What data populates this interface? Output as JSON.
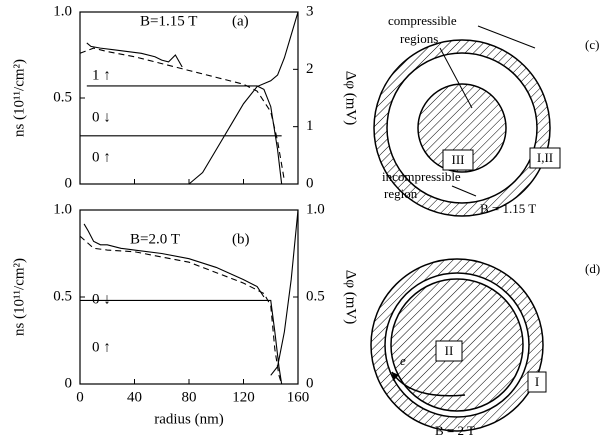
{
  "chart_data": [
    {
      "type": "line",
      "ylabel": "ns (10¹¹/cm²)",
      "y2label": "Δφ (mV)",
      "annotations": [
        "B=1.15 T",
        "(a)",
        "1 ↑",
        "0 ↓",
        "0 ↑"
      ],
      "xlim": [
        0,
        160
      ],
      "xticks": [
        0,
        40,
        80,
        120,
        160
      ],
      "ylim": [
        0,
        1
      ],
      "yticks": [
        0,
        0.5,
        {
          "value": 1,
          "label": "1.0"
        }
      ],
      "y2lim": [
        0,
        3
      ],
      "y2ticks": [
        0,
        1,
        2,
        3
      ],
      "series": [
        {
          "color": "#000000",
          "dash": false,
          "x": [
            5,
            8,
            15,
            25,
            35,
            45,
            55,
            60,
            65,
            70,
            75
          ],
          "values": [
            0.82,
            0.8,
            0.79,
            0.78,
            0.77,
            0.76,
            0.74,
            0.72,
            0.71,
            0.75,
            0.68
          ]
        },
        {
          "color": "#000000",
          "dash": true,
          "x": [
            0,
            10,
            20,
            40,
            60,
            80,
            100,
            120,
            130,
            140,
            145,
            150
          ],
          "values": [
            0.76,
            0.79,
            0.77,
            0.74,
            0.7,
            0.66,
            0.62,
            0.58,
            0.54,
            0.42,
            0.25,
            0.02
          ]
        },
        {
          "color": "#000000",
          "dash": false,
          "x": [
            5,
            130,
            135,
            140,
            145,
            148
          ],
          "values": [
            0.57,
            0.57,
            0.55,
            0.45,
            0.2,
            0
          ]
        },
        {
          "color": "#000000",
          "dash": false,
          "x": [
            0,
            148
          ],
          "values": [
            0.28,
            0.28
          ]
        },
        {
          "color": "#000000",
          "dash": false,
          "axis": "y2",
          "x": [
            80,
            90,
            100,
            110,
            120,
            130,
            140,
            145,
            150,
            155,
            160
          ],
          "values": [
            0,
            0.2,
            0.6,
            1,
            1.4,
            1.7,
            1.8,
            1.9,
            2.2,
            2.6,
            3
          ]
        }
      ]
    },
    {
      "type": "line",
      "ylabel": "ns (10¹¹/cm²)",
      "y2label": "Δφ (mV)",
      "xlabel": "radius (nm)",
      "annotations": [
        "B=2.0 T",
        "(b)",
        "0 ↓",
        "0 ↑"
      ],
      "xlim": [
        0,
        160
      ],
      "xticks": [
        0,
        40,
        80,
        120,
        160
      ],
      "ylim": [
        0,
        1
      ],
      "yticks": [
        0,
        0.5,
        {
          "value": 1,
          "label": "1.0"
        }
      ],
      "y2lim": [
        0,
        1
      ],
      "y2ticks": [
        0,
        0.5,
        {
          "value": 1,
          "label": "1.0"
        }
      ],
      "series": [
        {
          "color": "#000000",
          "dash": false,
          "x": [
            3,
            6,
            10,
            15,
            20,
            30,
            40,
            60,
            80,
            100,
            120,
            130,
            135
          ],
          "values": [
            0.92,
            0.88,
            0.82,
            0.8,
            0.8,
            0.78,
            0.77,
            0.75,
            0.72,
            0.67,
            0.6,
            0.56,
            0.5
          ]
        },
        {
          "color": "#000000",
          "dash": true,
          "x": [
            0,
            10,
            20,
            40,
            80,
            120,
            135,
            140,
            143,
            146,
            148
          ],
          "values": [
            0.85,
            0.78,
            0.77,
            0.76,
            0.7,
            0.58,
            0.52,
            0.45,
            0.2,
            0.05,
            0
          ]
        },
        {
          "color": "#000000",
          "dash": false,
          "x": [
            0,
            140,
            143,
            146,
            148
          ],
          "values": [
            0.48,
            0.48,
            0.3,
            0.1,
            0
          ]
        },
        {
          "color": "#000000",
          "dash": false,
          "axis": "y2",
          "x": [
            140,
            145,
            150,
            155,
            160
          ],
          "values": [
            0.05,
            0.1,
            0.3,
            0.6,
            1
          ]
        }
      ]
    }
  ],
  "diagram_c": {
    "panel": "(c)",
    "compressible": [
      "compressible",
      "regions"
    ],
    "inner": "III",
    "outer": "I,II",
    "incompressible": [
      "incompressible",
      "region"
    ],
    "field": "B = 1.15 T"
  },
  "diagram_d": {
    "panel": "(d)",
    "inner": "II",
    "outer": "I",
    "electron": "e",
    "field": "B = 2 T"
  }
}
